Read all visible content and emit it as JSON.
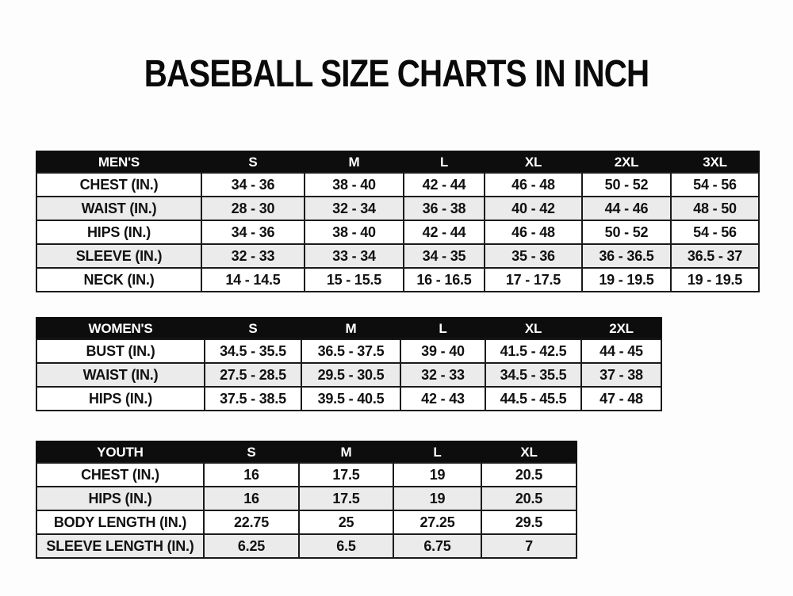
{
  "title": "BASEBALL SIZE CHARTS IN INCH",
  "colors": {
    "header_bg": "#0d0d0d",
    "header_text": "#ffffff",
    "row_alt_bg": "#ebebeb",
    "row_bg": "#ffffff",
    "border": "#1a1a1a",
    "text": "#111111",
    "page_bg": "#fdfdfd"
  },
  "chart_data": [
    {
      "type": "table",
      "name": "mens",
      "title": "MEN'S",
      "columns": [
        "MEN'S",
        "S",
        "M",
        "L",
        "XL",
        "2XL",
        "3XL"
      ],
      "rows": [
        [
          "CHEST (IN.)",
          "34 - 36",
          "38 - 40",
          "42 - 44",
          "46 - 48",
          "50 - 52",
          "54 - 56"
        ],
        [
          "WAIST (IN.)",
          "28 - 30",
          "32 - 34",
          "36 - 38",
          "40 - 42",
          "44 - 46",
          "48 - 50"
        ],
        [
          "HIPS (IN.)",
          "34 - 36",
          "38 - 40",
          "42 - 44",
          "46 - 48",
          "50 - 52",
          "54 - 56"
        ],
        [
          "SLEEVE (IN.)",
          "32 - 33",
          "33 - 34",
          "34 - 35",
          "35 - 36",
          "36 - 36.5",
          "36.5 - 37"
        ],
        [
          "NECK (IN.)",
          "14 - 14.5",
          "15 - 15.5",
          "16 - 16.5",
          "17 - 17.5",
          "19 - 19.5",
          "19 - 19.5"
        ]
      ]
    },
    {
      "type": "table",
      "name": "womens",
      "title": "WOMEN'S",
      "columns": [
        "WOMEN'S",
        "S",
        "M",
        "L",
        "XL",
        "2XL"
      ],
      "rows": [
        [
          "BUST (IN.)",
          "34.5 - 35.5",
          "36.5 - 37.5",
          "39 - 40",
          "41.5 - 42.5",
          "44 - 45"
        ],
        [
          "WAIST (IN.)",
          "27.5 - 28.5",
          "29.5 - 30.5",
          "32 - 33",
          "34.5 - 35.5",
          "37 - 38"
        ],
        [
          "HIPS (IN.)",
          "37.5 - 38.5",
          "39.5 - 40.5",
          "42 - 43",
          "44.5 - 45.5",
          "47 - 48"
        ]
      ]
    },
    {
      "type": "table",
      "name": "youth",
      "title": "YOUTH",
      "columns": [
        "YOUTH",
        "S",
        "M",
        "L",
        "XL"
      ],
      "rows": [
        [
          "CHEST (IN.)",
          "16",
          "17.5",
          "19",
          "20.5"
        ],
        [
          "HIPS (IN.)",
          "16",
          "17.5",
          "19",
          "20.5"
        ],
        [
          "BODY LENGTH (IN.)",
          "22.75",
          "25",
          "27.25",
          "29.5"
        ],
        [
          "SLEEVE LENGTH (IN.)",
          "6.25",
          "6.5",
          "6.75",
          "7"
        ]
      ]
    }
  ]
}
